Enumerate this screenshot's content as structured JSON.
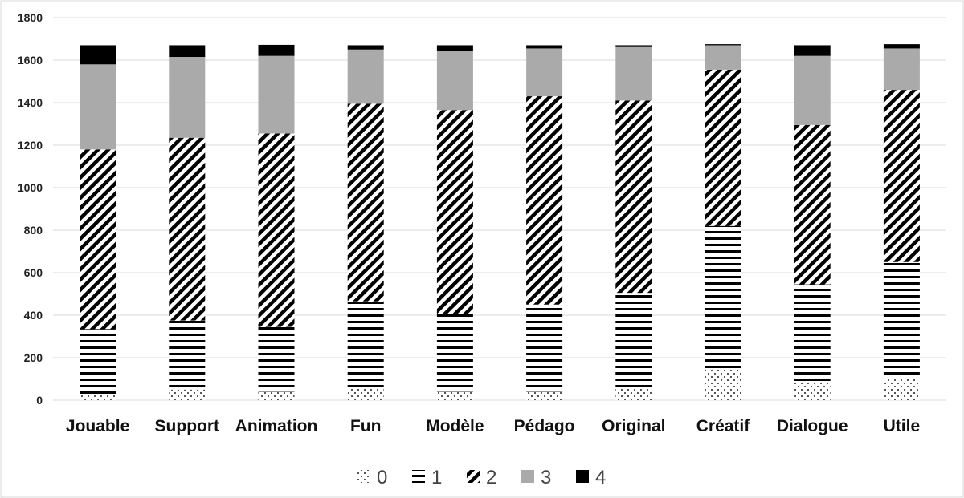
{
  "chart_data": {
    "type": "bar",
    "stacked": true,
    "title": "",
    "xlabel": "",
    "ylabel": "",
    "categories": [
      "Jouable",
      "Support",
      "Animation",
      "Fun",
      "Modèle",
      "Pédago",
      "Original",
      "Créatif",
      "Dialogue",
      "Utile"
    ],
    "series": [
      {
        "name": "0",
        "pattern": "dots",
        "values": [
          25,
          50,
          40,
          60,
          40,
          40,
          55,
          145,
          80,
          100
        ]
      },
      {
        "name": "1",
        "pattern": "horizontal-lines",
        "values": [
          310,
          325,
          305,
          405,
          365,
          410,
          450,
          675,
          465,
          550
        ]
      },
      {
        "name": "2",
        "pattern": "diagonal-stripes",
        "values": [
          845,
          860,
          910,
          930,
          960,
          980,
          905,
          735,
          750,
          810
        ]
      },
      {
        "name": "3",
        "pattern": "solid",
        "color": "#aaaaaa",
        "values": [
          400,
          380,
          365,
          255,
          280,
          225,
          255,
          115,
          325,
          195
        ]
      },
      {
        "name": "4",
        "pattern": "solid",
        "color": "#000000",
        "values": [
          90,
          55,
          52,
          20,
          25,
          15,
          5,
          5,
          50,
          20
        ]
      }
    ],
    "ylim": [
      0,
      1800
    ],
    "yticks": [
      0,
      200,
      400,
      600,
      800,
      1000,
      1200,
      1400,
      1600,
      1800
    ],
    "grid": true,
    "legend_position": "bottom"
  }
}
